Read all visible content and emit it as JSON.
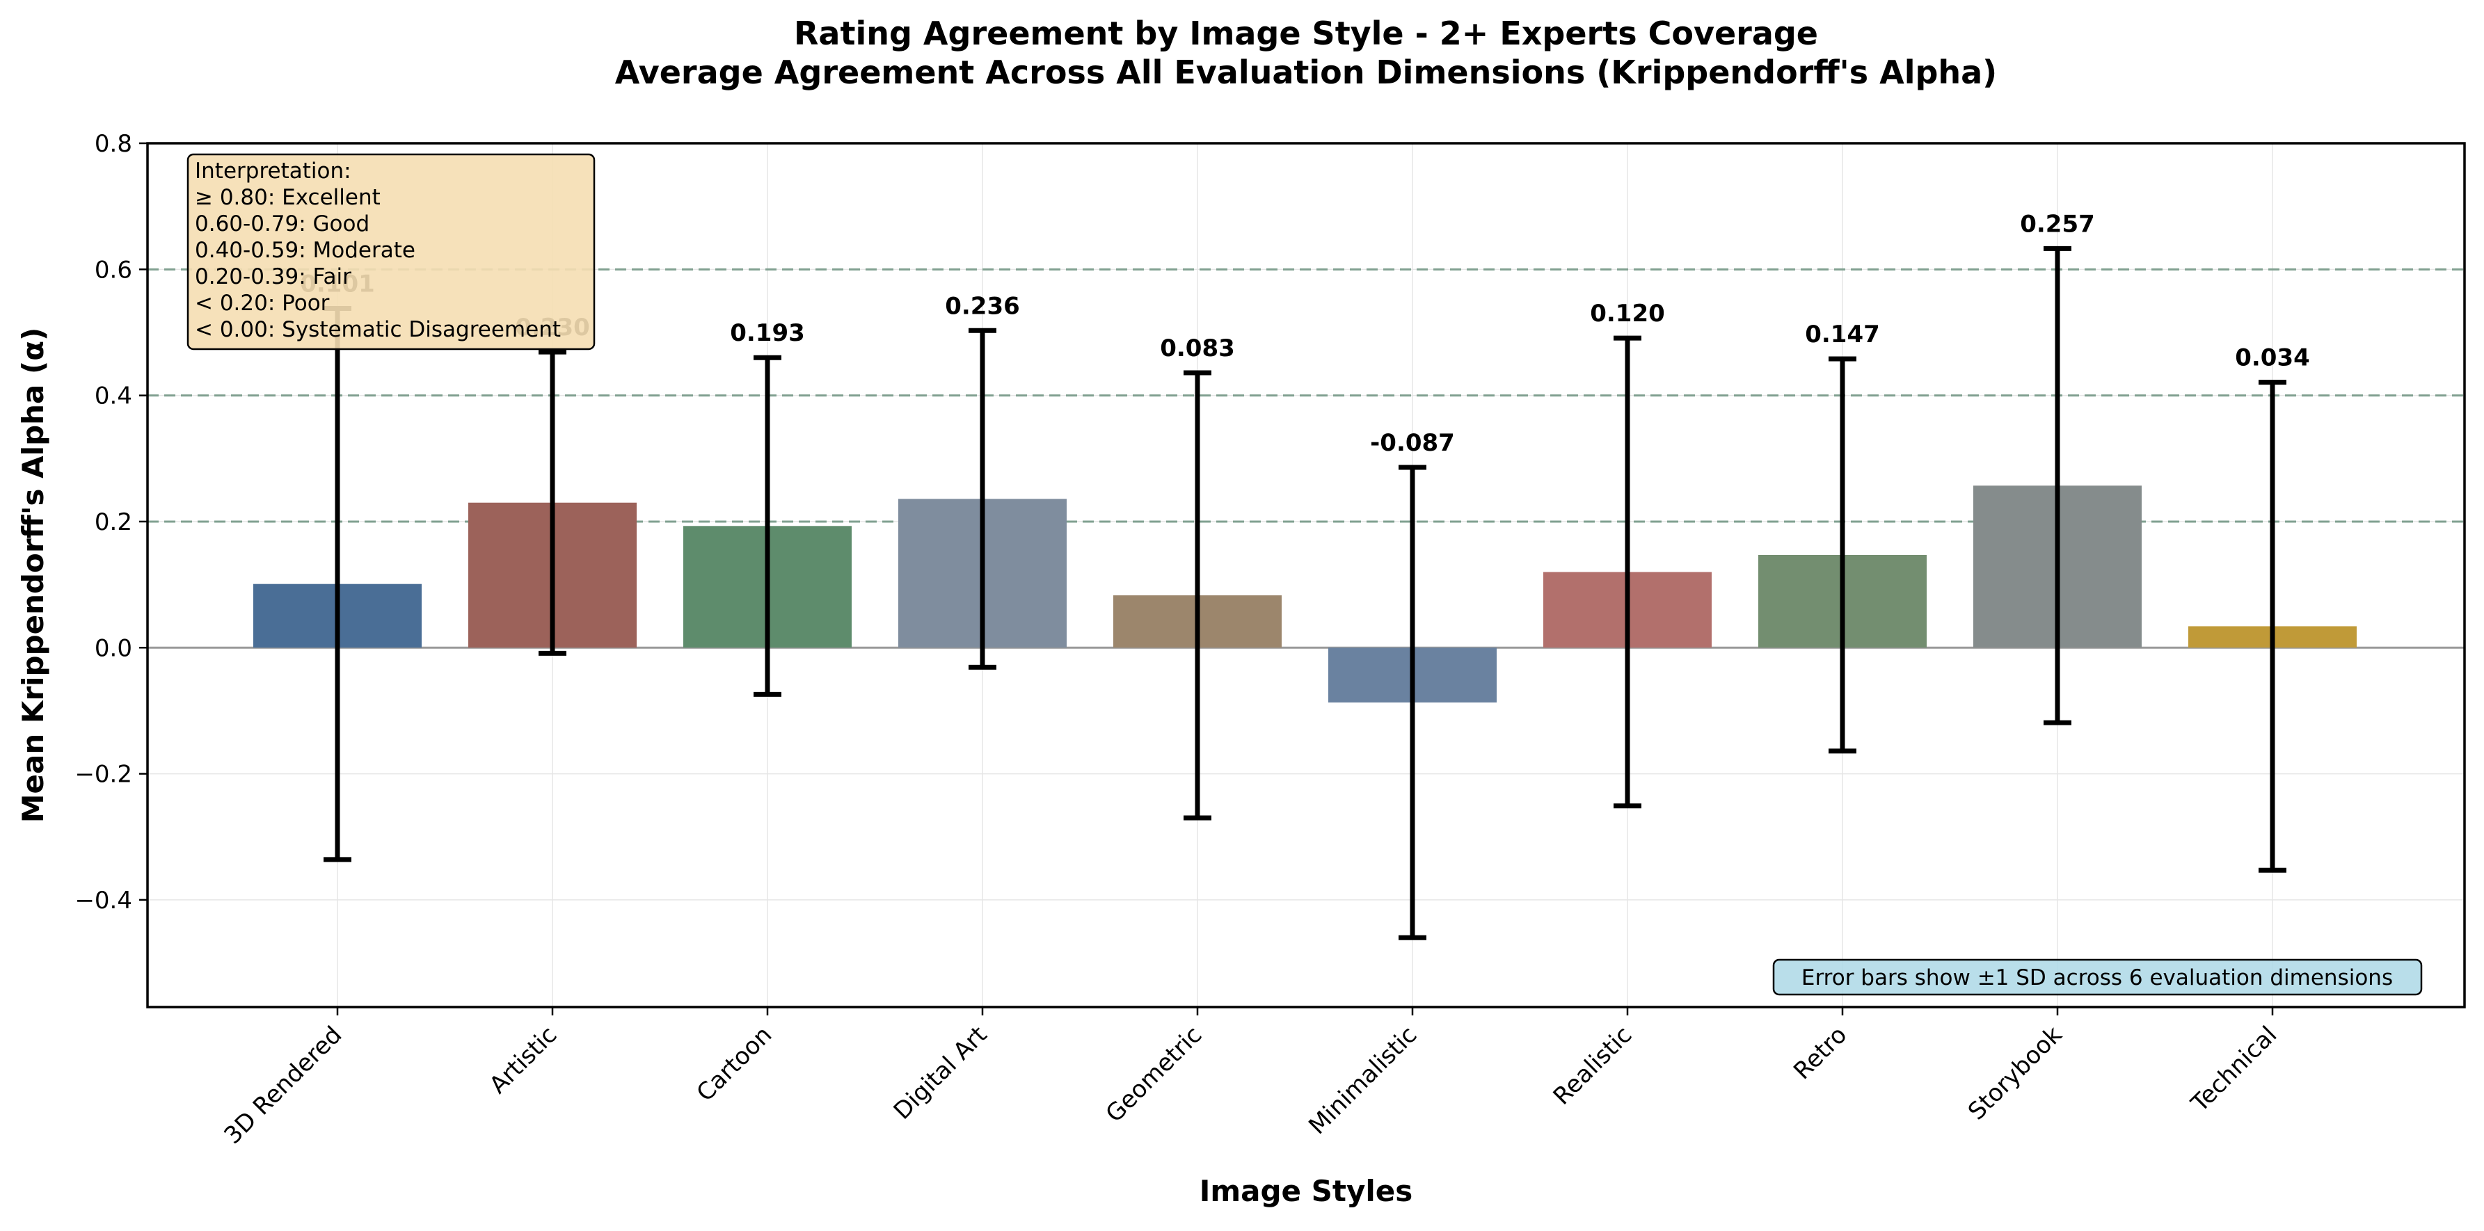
{
  "chart_data": {
    "type": "bar",
    "title": "Rating Agreement by Image Style - 2+ Experts Coverage",
    "subtitle": "Average Agreement Across All Evaluation Dimensions (Krippendorff's Alpha)",
    "xlabel": "Image Styles",
    "ylabel": "Mean Krippendorff's Alpha (α)",
    "ylim": [
      -0.57,
      0.8
    ],
    "yticks": [
      -0.4,
      -0.2,
      0.0,
      0.2,
      0.4,
      0.6,
      0.8
    ],
    "ytick_labels": [
      "−0.4",
      "−0.2",
      "0.0",
      "0.2",
      "0.4",
      "0.6",
      "0.8"
    ],
    "categories": [
      "3D Rendered",
      "Artistic",
      "Cartoon",
      "Digital Art",
      "Geometric",
      "Minimalistic",
      "Realistic",
      "Retro",
      "Storybook",
      "Technical"
    ],
    "values": [
      0.101,
      0.23,
      0.193,
      0.236,
      0.083,
      -0.087,
      0.12,
      0.147,
      0.257,
      0.034
    ],
    "value_labels": [
      "0.101",
      "0.230",
      "0.193",
      "0.236",
      "0.083",
      "-0.087",
      "0.120",
      "0.147",
      "0.257",
      "0.034"
    ],
    "error_sd": [
      0.437,
      0.239,
      0.267,
      0.267,
      0.353,
      0.373,
      0.371,
      0.311,
      0.376,
      0.387
    ],
    "colors": [
      "#4a6e96",
      "#9c625a",
      "#5e8c6c",
      "#7f8d9e",
      "#9c866c",
      "#6a82a0",
      "#b2706c",
      "#738e70",
      "#858c8c",
      "#c09a38"
    ],
    "reference_lines": [
      0.2,
      0.4,
      0.6
    ],
    "grid": true,
    "legend": "none",
    "interpretation_box": {
      "position": "top-left",
      "lines": [
        "Interpretation:",
        "≥ 0.80: Excellent",
        "0.60-0.79: Good",
        "0.40-0.59: Moderate",
        "0.20-0.39: Fair",
        "< 0.20: Poor",
        "< 0.00: Systematic Disagreement"
      ]
    },
    "note": {
      "position": "bottom-right",
      "text": "Error bars show ±1 SD across 6 evaluation dimensions"
    }
  }
}
